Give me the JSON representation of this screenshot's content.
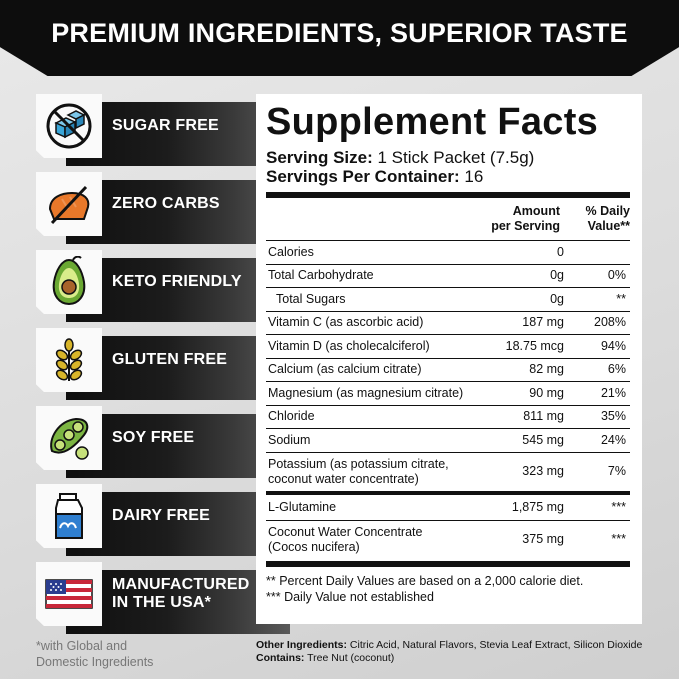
{
  "header": {
    "title": "PREMIUM INGREDIENTS, SUPERIOR TASTE"
  },
  "badges": [
    {
      "label": "SUGAR FREE",
      "icon": "sugar-cubes-crossed-icon"
    },
    {
      "label": "ZERO CARBS",
      "icon": "bread-crossed-icon"
    },
    {
      "label": "KETO FRIENDLY",
      "icon": "avocado-icon"
    },
    {
      "label": "GLUTEN FREE",
      "icon": "wheat-icon"
    },
    {
      "label": "SOY FREE",
      "icon": "soybean-pod-icon"
    },
    {
      "label": "DAIRY FREE",
      "icon": "milk-carton-icon"
    },
    {
      "label_line1": "MANUFACTURED",
      "label_line2": "IN THE USA*",
      "icon": "usa-flag-icon"
    }
  ],
  "footnote_left": {
    "line1": "*with Global and",
    "line2": "Domestic Ingredients"
  },
  "facts": {
    "title": "Supplement Facts",
    "serving_size_label": "Serving Size:",
    "serving_size_value": "1 Stick Packet (7.5g)",
    "servings_label": "Servings Per Container:",
    "servings_value": "16",
    "col_amount_line1": "Amount",
    "col_amount_line2": "per Serving",
    "col_dv_line1": "% Daily",
    "col_dv_line2": "Value**",
    "rows": [
      {
        "name": "Calories",
        "amount": "0",
        "dv": ""
      },
      {
        "name": "Total Carbohydrate",
        "amount": "0g",
        "dv": "0%"
      },
      {
        "name": "Total Sugars",
        "amount": "0g",
        "dv": "**"
      },
      {
        "name": "Vitamin C (as ascorbic acid)",
        "amount": "187 mg",
        "dv": "208%"
      },
      {
        "name": "Vitamin D (as cholecalciferol)",
        "amount": "18.75 mcg",
        "dv": "94%"
      },
      {
        "name": "Calcium (as calcium citrate)",
        "amount": "82 mg",
        "dv": "6%"
      },
      {
        "name": "Magnesium (as magnesium citrate)",
        "amount": "90 mg",
        "dv": "21%"
      },
      {
        "name": "Chloride",
        "amount": "811 mg",
        "dv": "35%"
      },
      {
        "name": "Sodium",
        "amount": "545 mg",
        "dv": "24%"
      },
      {
        "name_line1": "Potassium (as potassium citrate,",
        "name_line2": "coconut water concentrate)",
        "amount": "323 mg",
        "dv": "7%"
      }
    ],
    "rows2": [
      {
        "name": "L-Glutamine",
        "amount": "1,875 mg",
        "dv": "***"
      },
      {
        "name_line1": "Coconut Water Concentrate",
        "name_line2": "(Cocos nucifera)",
        "amount": "375 mg",
        "dv": "***"
      }
    ],
    "foot1": "** Percent Daily Values are based on a 2,000 calorie diet.",
    "foot2": "*** Daily Value not established"
  },
  "other": {
    "ingredients_label": "Other Ingredients:",
    "ingredients_value": " Citric Acid, Natural Flavors, Stevia Leaf Extract, Silicon Dioxide",
    "contains_label": "Contains:",
    "contains_value": " Tree Nut (coconut)"
  },
  "colors": {
    "banner": "#0d0d0d",
    "ice_blue": "#3aa6d8",
    "bread_orange": "#e8782a",
    "avocado_green": "#6aa832",
    "wheat_yellow": "#d8b52a",
    "soy_green": "#7cb542",
    "milk_blue": "#2f7fd0",
    "flag_red": "#c8283a",
    "flag_blue": "#2b3d8f"
  }
}
